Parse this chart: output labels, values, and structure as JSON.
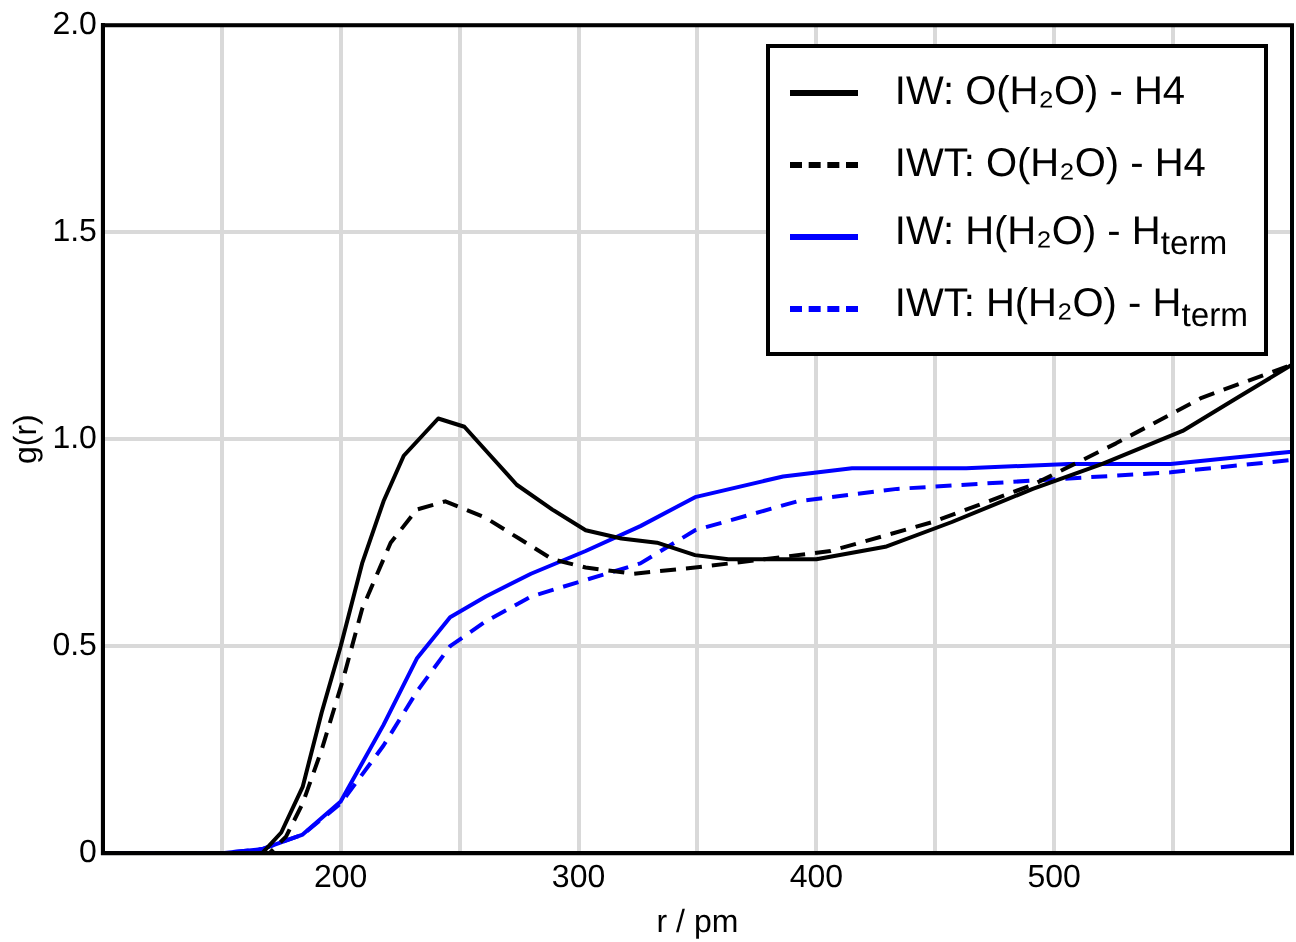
{
  "chart_data": {
    "type": "line",
    "xlabel": "r / pm",
    "ylabel": "g(r)",
    "xlim": [
      100,
      600
    ],
    "ylim": [
      0,
      2
    ],
    "xticks": [
      {
        "value": 150,
        "label": null
      },
      200,
      {
        "value": 250,
        "label": null
      },
      300,
      {
        "value": 350,
        "label": null
      },
      400,
      {
        "value": 450,
        "label": null
      },
      500,
      {
        "value": 550,
        "label": null
      }
    ],
    "yticks": [
      0,
      0.5,
      {
        "value": 1,
        "label": "1.0"
      },
      {
        "value": 1.5,
        "label": "1.5"
      },
      {
        "value": 2,
        "label": "2.0"
      }
    ],
    "grid": true,
    "legend": "top right",
    "marker": "none",
    "series": [
      {
        "name": "IW: O(H₂O) - H4",
        "color": "#000000",
        "line_style": "solid",
        "x": [
          100,
          160,
          167,
          175,
          184,
          192,
          200,
          209,
          218,
          226.5,
          241,
          252,
          263,
          274,
          289,
          303,
          318,
          333,
          349,
          363,
          400,
          429,
          457,
          491,
          520,
          554,
          577,
          600
        ],
        "values": [
          0,
          0,
          0,
          0.05,
          0.16,
          0.34,
          0.5,
          0.7,
          0.85,
          0.96,
          1.05,
          1.03,
          0.96,
          0.89,
          0.83,
          0.78,
          0.76,
          0.75,
          0.72,
          0.71,
          0.71,
          0.74,
          0.8,
          0.88,
          0.94,
          1.02,
          1.1,
          1.18
        ]
      },
      {
        "name": "IWT: O(H₂O) - H4",
        "color": "#000000",
        "line_style": "dashed",
        "x": [
          100,
          160,
          170,
          177,
          184,
          192,
          201,
          209,
          221,
          232,
          244,
          261,
          275,
          289,
          303,
          323,
          349,
          378,
          406,
          449,
          491,
          526,
          562,
          600
        ],
        "values": [
          0,
          0,
          0,
          0.04,
          0.12,
          0.25,
          0.42,
          0.59,
          0.75,
          0.83,
          0.85,
          0.81,
          0.76,
          0.71,
          0.69,
          0.675,
          0.69,
          0.71,
          0.73,
          0.8,
          0.89,
          0.99,
          1.1,
          1.18
        ]
      },
      {
        "name": "IW: H(H₂O) - H$_{term}$",
        "color": "#0000ff",
        "line_style": "solid",
        "x": [
          100,
          150,
          167,
          184,
          200,
          218,
          232,
          246,
          261,
          280,
          303,
          326,
          349,
          386,
          415,
          463,
          506,
          549,
          600
        ],
        "values": [
          0,
          0,
          0.01,
          0.045,
          0.125,
          0.31,
          0.47,
          0.57,
          0.62,
          0.675,
          0.73,
          0.79,
          0.86,
          0.91,
          0.93,
          0.93,
          0.94,
          0.94,
          0.97
        ]
      },
      {
        "name": "IWT: H(H₂O) - H$_{term}$",
        "color": "#0000ff",
        "line_style": "dashed",
        "x": [
          100,
          150,
          167,
          184,
          200,
          218,
          232,
          246,
          261,
          280,
          303,
          326,
          349,
          392,
          434,
          491,
          549,
          600
        ],
        "values": [
          0,
          0,
          0.01,
          0.045,
          0.12,
          0.26,
          0.39,
          0.5,
          0.56,
          0.62,
          0.66,
          0.7,
          0.78,
          0.85,
          0.88,
          0.9,
          0.92,
          0.95
        ]
      }
    ]
  }
}
